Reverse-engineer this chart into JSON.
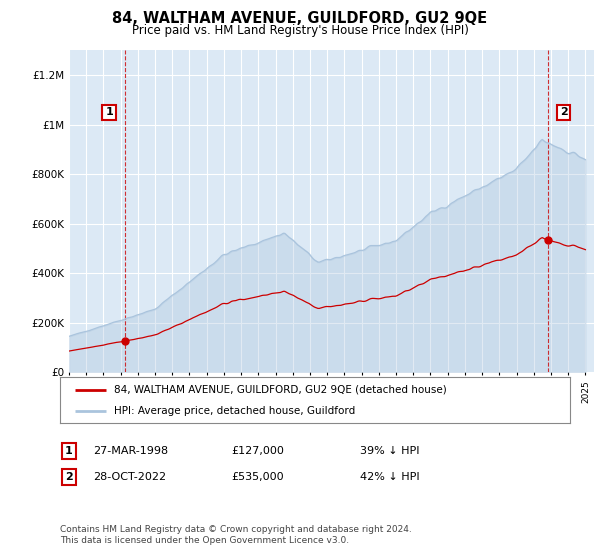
{
  "title": "84, WALTHAM AVENUE, GUILDFORD, GU2 9QE",
  "subtitle": "Price paid vs. HM Land Registry's House Price Index (HPI)",
  "legend_line1": "84, WALTHAM AVENUE, GUILDFORD, GU2 9QE (detached house)",
  "legend_line2": "HPI: Average price, detached house, Guildford",
  "hpi_color": "#aac4dd",
  "price_color": "#cc0000",
  "annotation1_label": "1",
  "annotation1_date": "27-MAR-1998",
  "annotation1_price": "£127,000",
  "annotation1_hpi": "39% ↓ HPI",
  "annotation2_label": "2",
  "annotation2_date": "28-OCT-2022",
  "annotation2_price": "£535,000",
  "annotation2_hpi": "42% ↓ HPI",
  "footer": "Contains HM Land Registry data © Crown copyright and database right 2024.\nThis data is licensed under the Open Government Licence v3.0.",
  "ylim": [
    0,
    1300000
  ],
  "yticks": [
    0,
    200000,
    400000,
    600000,
    800000,
    1000000,
    1200000
  ],
  "bg_color": "#dce9f5",
  "grid_color": "#ffffff",
  "sale1_year": 1998.23,
  "sale1_price": 127000,
  "sale2_year": 2022.83,
  "sale2_price": 535000
}
